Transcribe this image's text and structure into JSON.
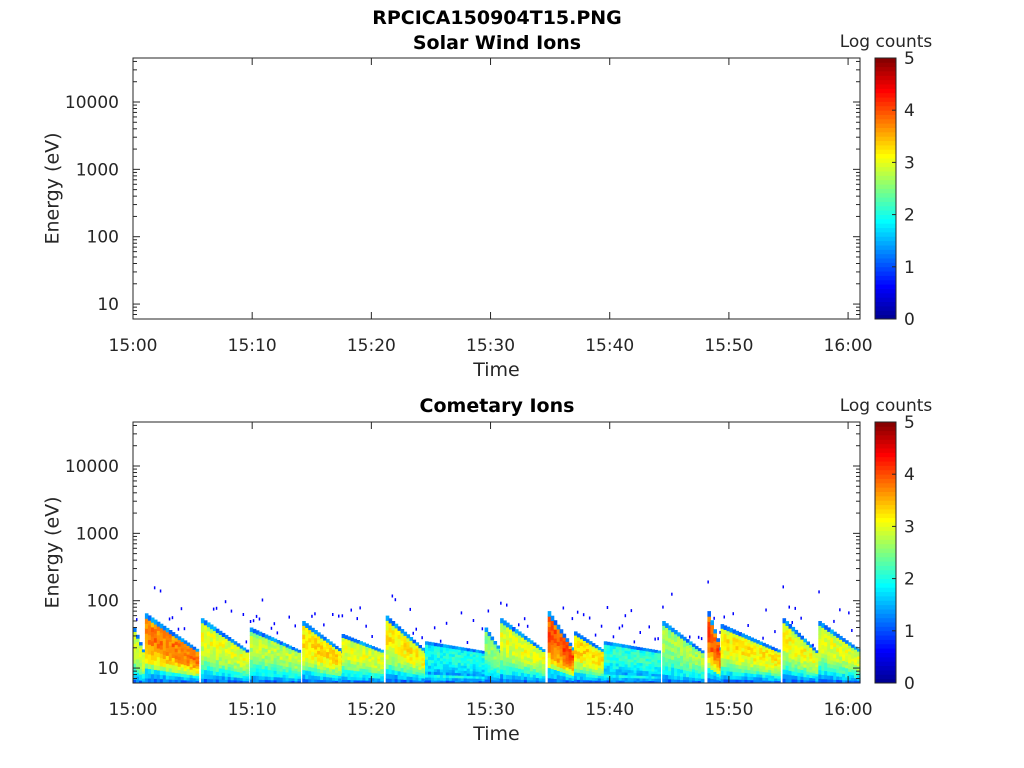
{
  "figure_title": "RPCICA150904T15.PNG",
  "colormap": [
    "#00008f",
    "#0000ff",
    "#0080ff",
    "#00ffff",
    "#80ff80",
    "#ffff00",
    "#ff8000",
    "#ff0000",
    "#800000"
  ],
  "chart_data": [
    {
      "type": "heatmap",
      "title": "Solar Wind Ions",
      "xlabel": "Time",
      "ylabel": "Energy (eV)",
      "x_ticks": [
        "15:00",
        "15:10",
        "15:20",
        "15:30",
        "15:40",
        "15:50",
        "16:00"
      ],
      "y_ticks": [
        {
          "value": 10,
          "label": "10"
        },
        {
          "value": 100,
          "label": "100"
        },
        {
          "value": 1000,
          "label": "1000"
        },
        {
          "value": 10000,
          "label": "10000"
        }
      ],
      "y_scale": "log",
      "xlim": [
        "15:00",
        "16:01"
      ],
      "ylim": [
        6,
        45000
      ],
      "colorbar": {
        "label": "Log counts",
        "range": [
          0,
          5
        ],
        "ticks": [
          "0",
          "1",
          "2",
          "3",
          "4",
          "5"
        ]
      },
      "events": []
    },
    {
      "type": "heatmap",
      "title": "Cometary Ions",
      "xlabel": "Time",
      "ylabel": "Energy (eV)",
      "x_ticks": [
        "15:00",
        "15:10",
        "15:20",
        "15:30",
        "15:40",
        "15:50",
        "16:00"
      ],
      "y_ticks": [
        {
          "value": 10,
          "label": "10"
        },
        {
          "value": 100,
          "label": "100"
        },
        {
          "value": 1000,
          "label": "1000"
        },
        {
          "value": 10000,
          "label": "10000"
        }
      ],
      "y_scale": "log",
      "xlim": [
        "15:00",
        "16:01"
      ],
      "ylim": [
        6,
        45000
      ],
      "colorbar": {
        "label": "Log counts",
        "range": [
          0,
          5
        ],
        "ticks": [
          "0",
          "1",
          "2",
          "3",
          "4",
          "5"
        ]
      },
      "events": [
        {
          "start_min": 0.0,
          "end_min": 0.8,
          "peak_eV": 40,
          "peak_log": 3.0
        },
        {
          "start_min": 1.0,
          "end_min": 5.5,
          "peak_eV": 65,
          "peak_log": 3.8
        },
        {
          "start_min": 5.7,
          "end_min": 9.6,
          "peak_eV": 55,
          "peak_log": 3.0
        },
        {
          "start_min": 9.8,
          "end_min": 14.0,
          "peak_eV": 40,
          "peak_log": 2.8
        },
        {
          "start_min": 14.2,
          "end_min": 17.5,
          "peak_eV": 50,
          "peak_log": 3.3
        },
        {
          "start_min": 17.5,
          "end_min": 21.0,
          "peak_eV": 32,
          "peak_log": 3.0
        },
        {
          "start_min": 21.2,
          "end_min": 24.5,
          "peak_eV": 60,
          "peak_log": 3.2
        },
        {
          "start_min": 24.5,
          "end_min": 29.3,
          "peak_eV": 25,
          "peak_log": 2.0
        },
        {
          "start_min": 29.5,
          "end_min": 30.8,
          "peak_eV": 40,
          "peak_log": 2.6
        },
        {
          "start_min": 30.8,
          "end_min": 34.5,
          "peak_eV": 55,
          "peak_log": 3.0
        },
        {
          "start_min": 34.8,
          "end_min": 37.0,
          "peak_eV": 70,
          "peak_log": 4.0
        },
        {
          "start_min": 37.0,
          "end_min": 39.5,
          "peak_eV": 35,
          "peak_log": 3.3
        },
        {
          "start_min": 39.5,
          "end_min": 44.2,
          "peak_eV": 25,
          "peak_log": 2.1
        },
        {
          "start_min": 44.4,
          "end_min": 47.7,
          "peak_eV": 50,
          "peak_log": 2.7
        },
        {
          "start_min": 48.2,
          "end_min": 49.3,
          "peak_eV": 70,
          "peak_log": 4.0
        },
        {
          "start_min": 49.3,
          "end_min": 54.3,
          "peak_eV": 45,
          "peak_log": 3.2
        },
        {
          "start_min": 54.5,
          "end_min": 57.3,
          "peak_eV": 55,
          "peak_log": 3.1
        },
        {
          "start_min": 57.5,
          "end_min": 61.0,
          "peak_eV": 50,
          "peak_log": 3.0
        }
      ]
    }
  ]
}
